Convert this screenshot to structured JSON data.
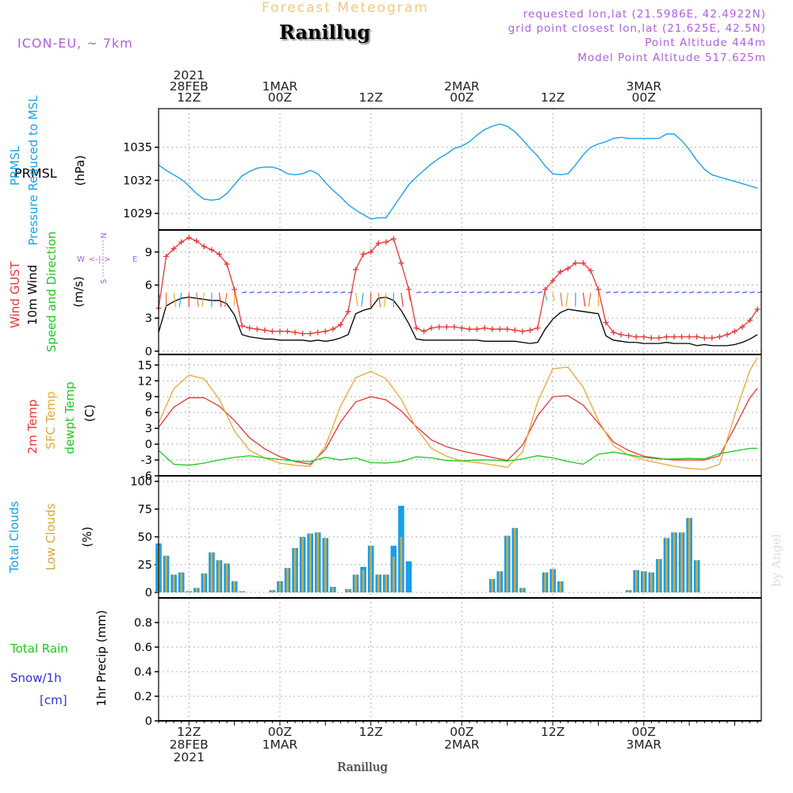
{
  "header": {
    "super_title": "Forecast Meteogram",
    "location": "Ranillug",
    "model": "ICON-EU, ~ 7km",
    "requested": "requested lon,lat (21.5986E, 42.4922N)",
    "gridpoint": "grid point closest lon,lat (21.625E, 42.5N)",
    "point_alt": "Point Altitude 444m",
    "model_alt": "Model Point Altitude 517.625m"
  },
  "footer": {
    "location": "Ranillug",
    "watermark": "by Angel"
  },
  "time_axis": {
    "top_labels": [
      {
        "lines": [
          "2021",
          "28FEB",
          "12Z"
        ]
      },
      {
        "lines": [
          "1MAR",
          "00Z"
        ]
      },
      {
        "lines": [
          "12Z"
        ]
      },
      {
        "lines": [
          "2MAR",
          "00Z"
        ]
      },
      {
        "lines": [
          "12Z"
        ]
      },
      {
        "lines": [
          "3MAR",
          "00Z"
        ]
      }
    ],
    "bottom_labels": [
      {
        "lines": [
          "12Z",
          "28FEB",
          "2021"
        ]
      },
      {
        "lines": [
          "00Z",
          "1MAR"
        ]
      },
      {
        "lines": [
          "12Z"
        ]
      },
      {
        "lines": [
          "00Z",
          "2MAR"
        ]
      },
      {
        "lines": [
          "12Z"
        ]
      },
      {
        "lines": [
          "00Z",
          "3MAR"
        ]
      }
    ]
  },
  "panels": {
    "pressure": {
      "label_a": "PRMSL",
      "label_b": "Pressure Reduced to MSL",
      "unit": "(hPa)"
    },
    "wind": {
      "gust_label": "Wind GUST",
      "wind_label": "10m Wind",
      "dir_label": "Speed and Direction",
      "unit": "(m/s)",
      "compass": {
        "n": "N",
        "s": "S",
        "e": "E",
        "w": "W",
        "arrows": "<-|->"
      }
    },
    "temp": {
      "t2m_label": "2m Temp",
      "sfc_label": "SFC Temp",
      "dew_label": "dewpt Temp",
      "unit": "(C)"
    },
    "clouds": {
      "total_label": "Total Clouds",
      "low_label": "Low Clouds",
      "unit": "(%)"
    },
    "precip": {
      "rain_label": "Total  Rain",
      "snow_label": "Snow/1h",
      "snow_unit": "[cm]",
      "unit": "1hr Precip (mm)"
    }
  },
  "colors": {
    "pressure": "#1aa3e8",
    "gust": "#e83838",
    "wind": "#000000",
    "t2m": "#e83838",
    "sfc": "#e8a838",
    "dew": "#1ec81e",
    "total_clouds": "#1a9ee8",
    "low_clouds": "#d8a838",
    "rain": "#1ec81e",
    "snow": "#3030e0",
    "purple": "#b05ee0",
    "grid": "#999999"
  },
  "chart_data": [
    {
      "type": "line",
      "name": "pressure",
      "x_unit": "hours since 2021-02-28 00Z",
      "x": [
        8,
        9,
        10,
        11,
        12,
        13,
        14,
        15,
        16,
        17,
        18,
        19,
        20,
        21,
        22,
        23,
        24,
        25,
        26,
        27,
        28,
        29,
        30,
        31,
        32,
        33,
        34,
        35,
        36,
        37,
        38,
        39,
        40,
        41,
        42,
        43,
        44,
        45,
        46,
        47,
        48,
        49,
        50,
        51,
        52,
        53,
        54,
        55,
        56,
        57,
        58,
        59,
        60,
        61,
        62,
        63,
        64,
        65,
        66,
        67,
        68,
        69,
        70,
        71,
        72,
        73,
        74,
        75,
        76,
        77,
        78,
        79,
        80,
        81,
        82,
        83,
        84,
        85,
        86,
        87
      ],
      "series": [
        {
          "name": "PRMSL",
          "values": [
            1033.4,
            1032.9,
            1032.5,
            1032.1,
            1031.5,
            1030.8,
            1030.3,
            1030.2,
            1030.3,
            1030.8,
            1031.6,
            1032.4,
            1032.8,
            1033.1,
            1033.2,
            1033.2,
            1033.0,
            1032.6,
            1032.5,
            1032.6,
            1032.9,
            1032.6,
            1031.8,
            1031.1,
            1030.5,
            1029.8,
            1029.3,
            1028.9,
            1028.5,
            1028.6,
            1028.6,
            1029.6,
            1030.6,
            1031.6,
            1032.3,
            1032.9,
            1033.5,
            1034.0,
            1034.4,
            1034.9,
            1035.1,
            1035.5,
            1036.1,
            1036.6,
            1036.9,
            1037.1,
            1036.9,
            1036.4,
            1035.7,
            1034.9,
            1034.2,
            1033.3,
            1032.6,
            1032.5,
            1032.6,
            1033.4,
            1034.3,
            1035.0,
            1035.3,
            1035.5,
            1035.8,
            1035.9,
            1035.8,
            1035.8,
            1035.8,
            1035.8,
            1035.8,
            1036.2,
            1036.2,
            1035.6,
            1034.8,
            1033.8,
            1033.0,
            1032.5,
            1032.3,
            1032.1,
            1031.9,
            1031.7,
            1031.5,
            1031.3
          ]
        }
      ],
      "ylabel": "(hPa)",
      "ylim": [
        1027.5,
        1038.5
      ],
      "yticks": [
        1029,
        1032,
        1035
      ],
      "grid": true
    },
    {
      "type": "line",
      "name": "wind",
      "x_unit": "hours since 2021-02-28 00Z",
      "x": [
        8,
        9,
        10,
        11,
        12,
        13,
        14,
        15,
        16,
        17,
        18,
        19,
        20,
        21,
        22,
        23,
        24,
        25,
        26,
        27,
        28,
        29,
        30,
        31,
        32,
        33,
        34,
        35,
        36,
        37,
        38,
        39,
        40,
        41,
        42,
        43,
        44,
        45,
        46,
        47,
        48,
        49,
        50,
        51,
        52,
        53,
        54,
        55,
        56,
        57,
        58,
        59,
        60,
        61,
        62,
        63,
        64,
        65,
        66,
        67,
        68,
        69,
        70,
        71,
        72,
        73,
        74,
        75,
        76,
        77,
        78,
        79,
        80,
        81,
        82,
        83,
        84,
        85,
        86,
        87
      ],
      "series": [
        {
          "name": "Wind GUST",
          "values": [
            3.9,
            8.6,
            9.3,
            9.9,
            10.3,
            10.0,
            9.5,
            9.2,
            8.8,
            7.9,
            5.6,
            2.3,
            2.1,
            2.0,
            1.9,
            1.8,
            1.8,
            1.8,
            1.7,
            1.6,
            1.6,
            1.7,
            1.8,
            2.0,
            2.4,
            3.6,
            7.4,
            8.8,
            9.0,
            9.8,
            9.9,
            10.2,
            8.0,
            5.6,
            2.1,
            1.8,
            2.1,
            2.2,
            2.2,
            2.2,
            2.1,
            2.0,
            2.0,
            2.1,
            2.0,
            2.0,
            2.0,
            1.9,
            1.8,
            1.9,
            2.1,
            5.6,
            6.4,
            7.2,
            7.5,
            8.0,
            8.0,
            7.3,
            5.6,
            2.6,
            1.7,
            1.5,
            1.4,
            1.3,
            1.3,
            1.2,
            1.2,
            1.3,
            1.3,
            1.3,
            1.3,
            1.3,
            1.2,
            1.2,
            1.3,
            1.5,
            1.8,
            2.2,
            2.8,
            3.8
          ]
        },
        {
          "name": "10m Wind",
          "values": [
            1.7,
            4.1,
            4.5,
            4.8,
            4.9,
            4.8,
            4.7,
            4.6,
            4.6,
            4.3,
            3.3,
            1.5,
            1.3,
            1.2,
            1.1,
            1.1,
            1.0,
            1.0,
            1.0,
            1.0,
            0.9,
            1.0,
            0.9,
            1.0,
            1.2,
            1.5,
            3.4,
            3.7,
            3.9,
            4.8,
            4.9,
            4.6,
            3.7,
            2.5,
            1.1,
            1.0,
            1.0,
            1.0,
            1.0,
            1.0,
            1.0,
            1.0,
            1.0,
            0.9,
            0.9,
            0.9,
            0.9,
            0.9,
            0.8,
            0.7,
            0.8,
            2.0,
            2.9,
            3.5,
            3.8,
            3.7,
            3.6,
            3.5,
            3.4,
            1.4,
            1.0,
            0.9,
            0.8,
            0.8,
            0.7,
            0.7,
            0.7,
            0.8,
            0.7,
            0.7,
            0.7,
            0.5,
            0.6,
            0.5,
            0.5,
            0.5,
            0.6,
            0.8,
            1.1,
            1.5
          ]
        }
      ],
      "ylabel": "(m/s)",
      "ylim": [
        -0.3,
        11
      ],
      "yticks": [
        0,
        3,
        6,
        9
      ],
      "grid": true
    },
    {
      "type": "line",
      "name": "temperature",
      "x_unit": "hours since 2021-02-28 00Z",
      "x": [
        8,
        10,
        12,
        14,
        16,
        18,
        20,
        22,
        24,
        26,
        28,
        30,
        32,
        34,
        36,
        38,
        40,
        42,
        44,
        46,
        48,
        50,
        52,
        54,
        56,
        58,
        60,
        62,
        64,
        66,
        68,
        70,
        72,
        74,
        76,
        78,
        80,
        82,
        84,
        86,
        87
      ],
      "series": [
        {
          "name": "2m Temp",
          "values": [
            3.2,
            7.0,
            8.8,
            8.8,
            7.2,
            4.5,
            1.2,
            -0.9,
            -2.4,
            -3.3,
            -3.8,
            -1.0,
            4.2,
            8.0,
            9.0,
            8.4,
            6.3,
            3.3,
            0.8,
            -0.5,
            -1.3,
            -1.9,
            -2.5,
            -3.1,
            -0.2,
            5.4,
            9.0,
            9.2,
            7.4,
            4.0,
            0.4,
            -1.2,
            -2.3,
            -2.7,
            -3.0,
            -3.0,
            -3.0,
            -2.2,
            3.2,
            8.8,
            10.6
          ]
        },
        {
          "name": "SFC Temp",
          "values": [
            4.0,
            10.5,
            13.1,
            12.4,
            8.5,
            2.5,
            -1.2,
            -2.6,
            -3.6,
            -4.0,
            -4.2,
            -0.4,
            7.2,
            12.6,
            13.8,
            12.4,
            8.5,
            3.0,
            -0.8,
            -2.3,
            -3.2,
            -3.5,
            -3.9,
            -4.4,
            -1.5,
            8.0,
            14.3,
            14.6,
            10.8,
            4.5,
            -0.3,
            -2.1,
            -3.0,
            -3.6,
            -4.2,
            -4.6,
            -4.8,
            -3.8,
            5.5,
            14.0,
            16.4
          ]
        },
        {
          "name": "dewpt Temp",
          "values": [
            -1.2,
            -3.8,
            -4.0,
            -3.6,
            -3.0,
            -2.5,
            -2.2,
            -2.6,
            -2.9,
            -3.2,
            -3.3,
            -2.5,
            -3.0,
            -2.6,
            -3.5,
            -3.6,
            -3.3,
            -2.4,
            -2.6,
            -3.1,
            -3.2,
            -3.0,
            -3.0,
            -3.2,
            -2.8,
            -2.2,
            -2.6,
            -3.3,
            -3.8,
            -1.9,
            -1.5,
            -2.0,
            -2.5,
            -2.8,
            -2.8,
            -2.7,
            -2.8,
            -1.8,
            -1.3,
            -0.8,
            -0.8
          ]
        }
      ],
      "ylabel": "(C)",
      "ylim": [
        -6,
        17
      ],
      "yticks": [
        -6,
        -3,
        0,
        3,
        6,
        9,
        12,
        15
      ],
      "grid": true
    },
    {
      "type": "bar",
      "name": "clouds",
      "x_unit": "hours since 2021-02-28 00Z",
      "x": [
        8,
        9,
        10,
        11,
        12,
        13,
        14,
        15,
        16,
        17,
        18,
        19,
        20,
        21,
        22,
        23,
        24,
        25,
        26,
        27,
        28,
        29,
        30,
        31,
        32,
        33,
        34,
        35,
        36,
        37,
        38,
        39,
        40,
        41,
        42,
        43,
        44,
        45,
        46,
        47,
        48,
        49,
        50,
        51,
        52,
        53,
        54,
        55,
        56,
        57,
        58,
        59,
        60,
        61,
        62,
        63,
        64,
        65,
        66,
        67,
        68,
        69,
        70,
        71,
        72,
        73,
        74,
        75,
        76,
        77,
        78,
        79,
        80,
        81,
        82,
        83,
        84,
        85,
        86,
        87
      ],
      "series": [
        {
          "name": "Total Clouds",
          "values": [
            44,
            33,
            16,
            18,
            1,
            4,
            17,
            36,
            29,
            26,
            10,
            1,
            0,
            0,
            0,
            2,
            10,
            22,
            40,
            50,
            53,
            54,
            49,
            5,
            0,
            3,
            16,
            23,
            42,
            16,
            16,
            42,
            78,
            28,
            0,
            0,
            0,
            0,
            0,
            0,
            0,
            0,
            0,
            0,
            12,
            19,
            51,
            58,
            4,
            0,
            0,
            18,
            21,
            10,
            0,
            0,
            0,
            0,
            0,
            0,
            0,
            0,
            2,
            20,
            19,
            18,
            30,
            49,
            54,
            54,
            67,
            29,
            0,
            0,
            0,
            0,
            0,
            0,
            0,
            0
          ]
        },
        {
          "name": "Low Clouds",
          "values": [
            42,
            33,
            16,
            18,
            1,
            4,
            17,
            36,
            29,
            26,
            10,
            1,
            0,
            0,
            0,
            2,
            10,
            22,
            40,
            50,
            53,
            54,
            49,
            5,
            0,
            3,
            16,
            20,
            42,
            16,
            16,
            32,
            50,
            0,
            0,
            0,
            0,
            0,
            0,
            0,
            0,
            0,
            0,
            0,
            12,
            19,
            51,
            58,
            4,
            0,
            0,
            18,
            21,
            10,
            0,
            0,
            0,
            0,
            0,
            0,
            0,
            0,
            2,
            20,
            19,
            18,
            30,
            49,
            54,
            54,
            67,
            29,
            0,
            0,
            0,
            0,
            0,
            0,
            0,
            0
          ]
        }
      ],
      "ylabel": "(%)",
      "ylim": [
        -5,
        105
      ],
      "yticks": [
        0,
        25,
        50,
        75,
        100
      ],
      "grid": true
    },
    {
      "type": "bar",
      "name": "precip",
      "x_unit": "hours since 2021-02-28 00Z",
      "x": [],
      "series": [
        {
          "name": "Total Rain",
          "values": []
        },
        {
          "name": "Snow/1h",
          "values": []
        }
      ],
      "ylabel": "1hr Precip (mm)",
      "ylim": [
        0,
        1
      ],
      "yticks": [
        0,
        0.2,
        0.4,
        0.6,
        0.8
      ],
      "grid": true
    }
  ]
}
